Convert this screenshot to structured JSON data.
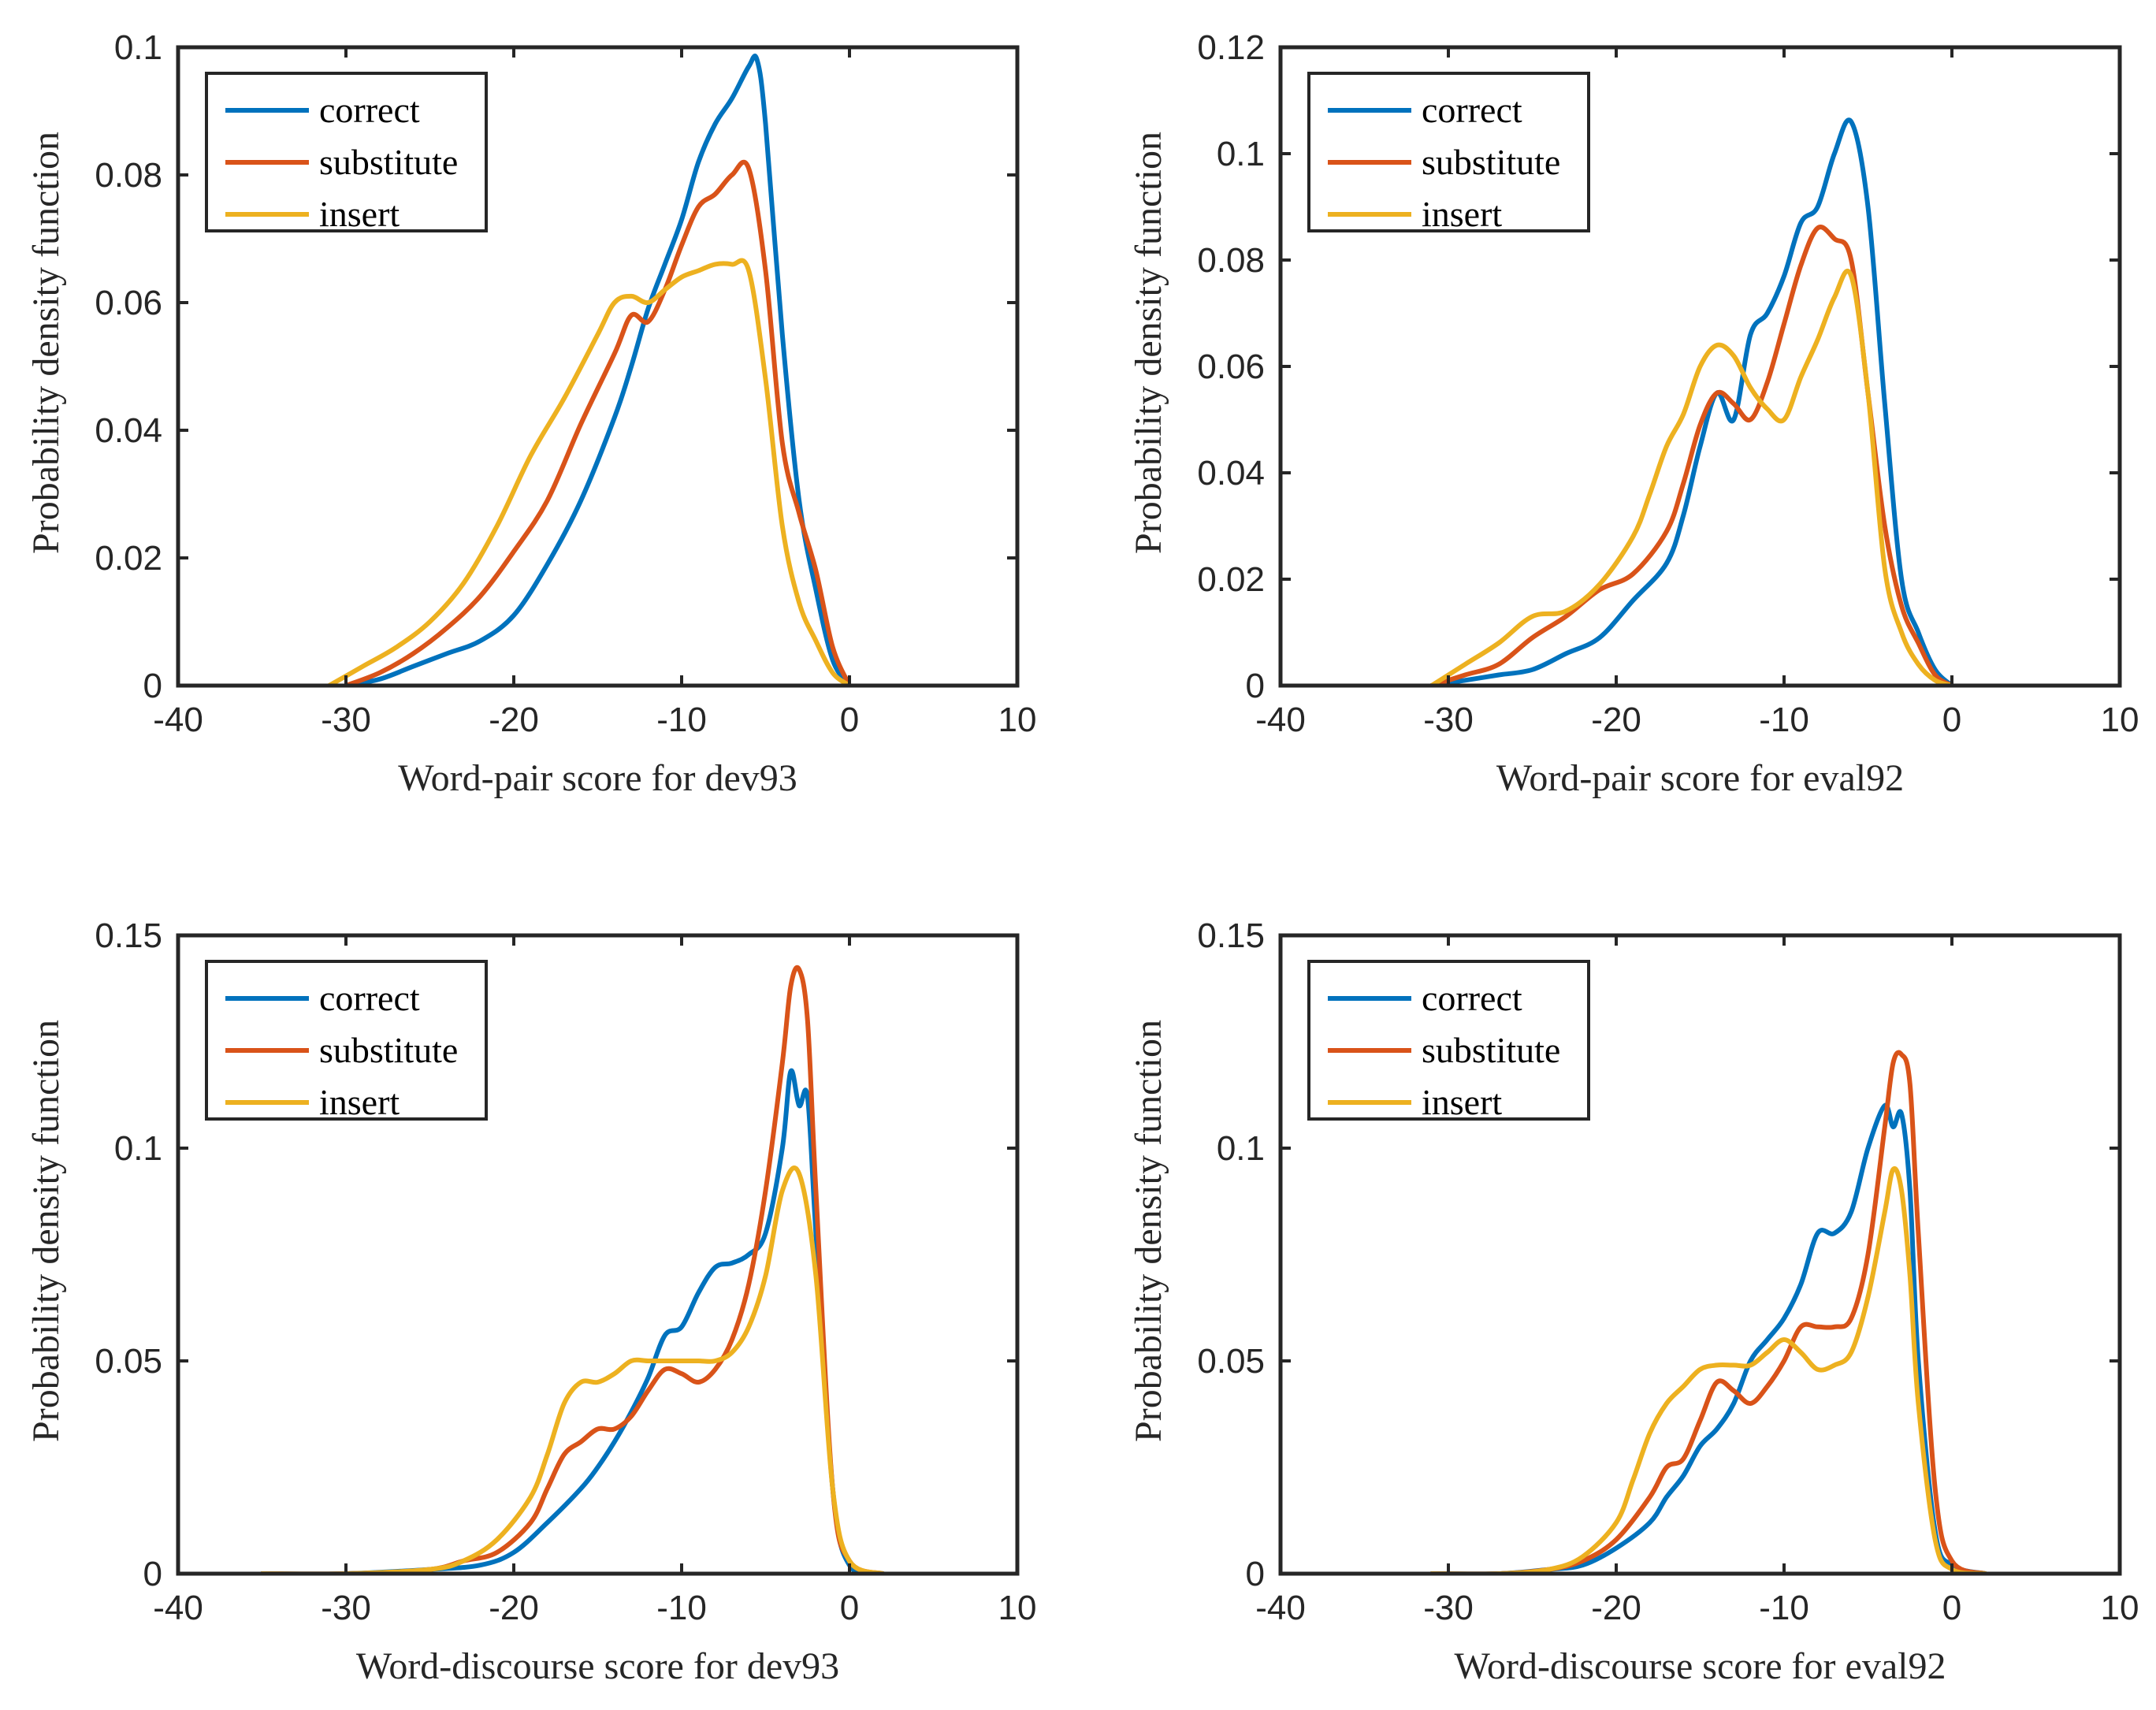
{
  "chart_data": [
    {
      "type": "line",
      "xlabel": "Word-pair score for dev93",
      "ylabel": "Probability density function",
      "xlim": [
        -40,
        10
      ],
      "ylim": [
        0,
        0.1
      ],
      "xticks": [
        "-40",
        "-30",
        "-20",
        "-10",
        "0",
        "10"
      ],
      "yticks": [
        "0",
        "0.02",
        "0.04",
        "0.06",
        "0.08",
        "0.1"
      ],
      "legend_position": "top-left",
      "series": [
        {
          "name": "correct",
          "color": "#0072BD",
          "x": [
            -30,
            -28,
            -26,
            -24,
            -22,
            -20,
            -18,
            -16,
            -14,
            -13,
            -12,
            -11,
            -10,
            -9,
            -8,
            -7,
            -6,
            -5.5,
            -5,
            -4,
            -3,
            -2,
            -1,
            0
          ],
          "y": [
            0,
            0.001,
            0.003,
            0.005,
            0.007,
            0.011,
            0.019,
            0.029,
            0.042,
            0.05,
            0.059,
            0.066,
            0.073,
            0.082,
            0.088,
            0.092,
            0.097,
            0.098,
            0.088,
            0.055,
            0.029,
            0.015,
            0.004,
            0
          ]
        },
        {
          "name": "substitute",
          "color": "#D95319",
          "x": [
            -30,
            -28,
            -26,
            -24,
            -22,
            -20,
            -18,
            -16,
            -14,
            -13,
            -12,
            -11,
            -10,
            -9,
            -8,
            -7,
            -6,
            -5,
            -4,
            -3,
            -2,
            -1,
            0
          ],
          "y": [
            0,
            0.002,
            0.005,
            0.009,
            0.014,
            0.021,
            0.029,
            0.041,
            0.052,
            0.058,
            0.057,
            0.062,
            0.069,
            0.075,
            0.077,
            0.08,
            0.081,
            0.065,
            0.038,
            0.027,
            0.018,
            0.006,
            0
          ]
        },
        {
          "name": "insert",
          "color": "#EDB120",
          "x": [
            -31,
            -29,
            -27,
            -25,
            -23,
            -21,
            -19,
            -17,
            -15,
            -14,
            -13,
            -12,
            -11,
            -10,
            -9,
            -8,
            -7,
            -6,
            -5,
            -4,
            -3,
            -2,
            -1,
            0
          ],
          "y": [
            0,
            0.003,
            0.006,
            0.01,
            0.016,
            0.025,
            0.036,
            0.045,
            0.055,
            0.06,
            0.061,
            0.06,
            0.062,
            0.064,
            0.065,
            0.066,
            0.066,
            0.065,
            0.048,
            0.025,
            0.013,
            0.007,
            0.002,
            0
          ]
        }
      ]
    },
    {
      "type": "line",
      "xlabel": "Word-pair score for eval92",
      "ylabel": "Probability density function",
      "xlim": [
        -40,
        10
      ],
      "ylim": [
        0,
        0.12
      ],
      "xticks": [
        "-40",
        "-30",
        "-20",
        "-10",
        "0",
        "10"
      ],
      "yticks": [
        "0",
        "0.02",
        "0.04",
        "0.06",
        "0.08",
        "0.1",
        "0.12"
      ],
      "legend_position": "top-left",
      "series": [
        {
          "name": "correct",
          "color": "#0072BD",
          "x": [
            -31,
            -29,
            -27,
            -25,
            -23,
            -21,
            -19,
            -17,
            -16,
            -15,
            -14,
            -13,
            -12,
            -11,
            -10,
            -9,
            -8,
            -7,
            -6,
            -5,
            -4,
            -3,
            -2,
            -1,
            0
          ],
          "y": [
            0,
            0.001,
            0.002,
            0.003,
            0.006,
            0.009,
            0.016,
            0.023,
            0.032,
            0.045,
            0.055,
            0.05,
            0.066,
            0.07,
            0.077,
            0.087,
            0.09,
            0.1,
            0.106,
            0.09,
            0.053,
            0.02,
            0.01,
            0.003,
            0
          ]
        },
        {
          "name": "substitute",
          "color": "#D95319",
          "x": [
            -31,
            -29,
            -27,
            -25,
            -23,
            -21,
            -19,
            -17,
            -16,
            -15,
            -14,
            -13,
            -12,
            -11,
            -10,
            -9,
            -8,
            -7,
            -6,
            -5,
            -4,
            -3,
            -2,
            -1,
            0
          ],
          "y": [
            0,
            0.002,
            0.004,
            0.009,
            0.013,
            0.018,
            0.021,
            0.029,
            0.038,
            0.049,
            0.055,
            0.053,
            0.05,
            0.057,
            0.068,
            0.079,
            0.086,
            0.084,
            0.08,
            0.055,
            0.03,
            0.015,
            0.008,
            0.002,
            0
          ]
        },
        {
          "name": "insert",
          "color": "#EDB120",
          "x": [
            -31,
            -29,
            -27,
            -25,
            -23,
            -21,
            -19,
            -18,
            -17,
            -16,
            -15,
            -14,
            -13,
            -12,
            -11,
            -10,
            -9,
            -8,
            -7,
            -6,
            -5,
            -4,
            -3,
            -2,
            -1,
            0
          ],
          "y": [
            0,
            0.004,
            0.008,
            0.013,
            0.014,
            0.019,
            0.028,
            0.036,
            0.045,
            0.051,
            0.06,
            0.064,
            0.062,
            0.056,
            0.052,
            0.05,
            0.058,
            0.065,
            0.073,
            0.077,
            0.055,
            0.022,
            0.01,
            0.004,
            0.001,
            0
          ]
        }
      ]
    },
    {
      "type": "line",
      "xlabel": "Word-discourse score for dev93",
      "ylabel": "Probability density function",
      "xlim": [
        -40,
        10
      ],
      "ylim": [
        0,
        0.15
      ],
      "xticks": [
        "-40",
        "-30",
        "-20",
        "-10",
        "0",
        "10"
      ],
      "yticks": [
        "0",
        "0.05",
        "0.1",
        "0.15"
      ],
      "legend_position": "top-left",
      "series": [
        {
          "name": "correct",
          "color": "#0072BD",
          "x": [
            -35,
            -30,
            -25,
            -22,
            -20,
            -18,
            -16,
            -15,
            -14,
            -13,
            -12,
            -11,
            -10,
            -9,
            -8,
            -7,
            -6,
            -5,
            -4,
            -3.5,
            -3,
            -2.5,
            -2,
            -1,
            0,
            2
          ],
          "y": [
            0,
            0,
            0.001,
            0.002,
            0.005,
            0.012,
            0.02,
            0.025,
            0.031,
            0.038,
            0.046,
            0.056,
            0.058,
            0.066,
            0.072,
            0.073,
            0.075,
            0.08,
            0.1,
            0.118,
            0.11,
            0.112,
            0.08,
            0.02,
            0.002,
            0
          ]
        },
        {
          "name": "substitute",
          "color": "#D95319",
          "x": [
            -35,
            -30,
            -25,
            -23,
            -21,
            -19,
            -18,
            -17,
            -16,
            -15,
            -14,
            -13,
            -12,
            -11,
            -10,
            -9,
            -8,
            -7,
            -6,
            -5,
            -4,
            -3.5,
            -3,
            -2.5,
            -2,
            -1,
            0,
            2
          ],
          "y": [
            0,
            0,
            0.001,
            0.003,
            0.005,
            0.012,
            0.02,
            0.028,
            0.031,
            0.034,
            0.034,
            0.037,
            0.043,
            0.048,
            0.047,
            0.045,
            0.048,
            0.055,
            0.068,
            0.09,
            0.12,
            0.138,
            0.142,
            0.13,
            0.09,
            0.02,
            0.003,
            0
          ]
        },
        {
          "name": "insert",
          "color": "#EDB120",
          "x": [
            -35,
            -30,
            -25,
            -23,
            -21,
            -19,
            -18,
            -17,
            -16,
            -15,
            -14,
            -13,
            -12,
            -11,
            -10,
            -9,
            -8,
            -7,
            -6,
            -5,
            -4,
            -3,
            -2,
            -1,
            0,
            2
          ],
          "y": [
            0,
            0,
            0.001,
            0.003,
            0.008,
            0.018,
            0.028,
            0.04,
            0.045,
            0.045,
            0.047,
            0.05,
            0.05,
            0.05,
            0.05,
            0.05,
            0.05,
            0.052,
            0.058,
            0.07,
            0.09,
            0.094,
            0.07,
            0.02,
            0.003,
            0
          ]
        }
      ]
    },
    {
      "type": "line",
      "xlabel": "Word-discourse score for eval92",
      "ylabel": "Probability density function",
      "xlim": [
        -40,
        10
      ],
      "ylim": [
        0,
        0.15
      ],
      "xticks": [
        "-40",
        "-30",
        "-20",
        "-10",
        "0",
        "10"
      ],
      "yticks": [
        "0",
        "0.05",
        "0.1",
        "0.15"
      ],
      "legend_position": "top-left",
      "series": [
        {
          "name": "correct",
          "color": "#0072BD",
          "x": [
            -31,
            -27,
            -24,
            -22,
            -20,
            -18,
            -17,
            -16,
            -15,
            -14,
            -13,
            -12,
            -11,
            -10,
            -9,
            -8,
            -7,
            -6,
            -5,
            -4,
            -3.5,
            -3,
            -2.5,
            -2,
            -1,
            0,
            2
          ],
          "y": [
            0,
            0,
            0.001,
            0.002,
            0.006,
            0.012,
            0.018,
            0.023,
            0.03,
            0.034,
            0.04,
            0.05,
            0.055,
            0.06,
            0.068,
            0.08,
            0.08,
            0.085,
            0.1,
            0.11,
            0.105,
            0.108,
            0.09,
            0.05,
            0.01,
            0.002,
            0
          ]
        },
        {
          "name": "substitute",
          "color": "#D95319",
          "x": [
            -31,
            -27,
            -24,
            -22,
            -20,
            -18,
            -17,
            -16,
            -15,
            -14,
            -13,
            -12,
            -11,
            -10,
            -9,
            -8,
            -7,
            -6,
            -5,
            -4,
            -3.5,
            -3,
            -2.5,
            -2,
            -1,
            0,
            2
          ],
          "y": [
            0,
            0,
            0.001,
            0.003,
            0.008,
            0.018,
            0.025,
            0.027,
            0.036,
            0.045,
            0.043,
            0.04,
            0.044,
            0.05,
            0.058,
            0.058,
            0.058,
            0.06,
            0.075,
            0.105,
            0.12,
            0.122,
            0.115,
            0.08,
            0.02,
            0.003,
            0
          ]
        },
        {
          "name": "insert",
          "color": "#EDB120",
          "x": [
            -31,
            -27,
            -24,
            -22,
            -20,
            -19,
            -18,
            -17,
            -16,
            -15,
            -14,
            -13,
            -12,
            -11,
            -10,
            -9,
            -8,
            -7,
            -6,
            -5,
            -4,
            -3.5,
            -3,
            -2.5,
            -2,
            -1,
            0,
            2
          ],
          "y": [
            0,
            0,
            0.001,
            0.004,
            0.012,
            0.022,
            0.033,
            0.04,
            0.044,
            0.048,
            0.049,
            0.049,
            0.049,
            0.052,
            0.055,
            0.052,
            0.048,
            0.049,
            0.052,
            0.065,
            0.085,
            0.095,
            0.09,
            0.07,
            0.04,
            0.008,
            0.001,
            0
          ]
        }
      ]
    }
  ]
}
